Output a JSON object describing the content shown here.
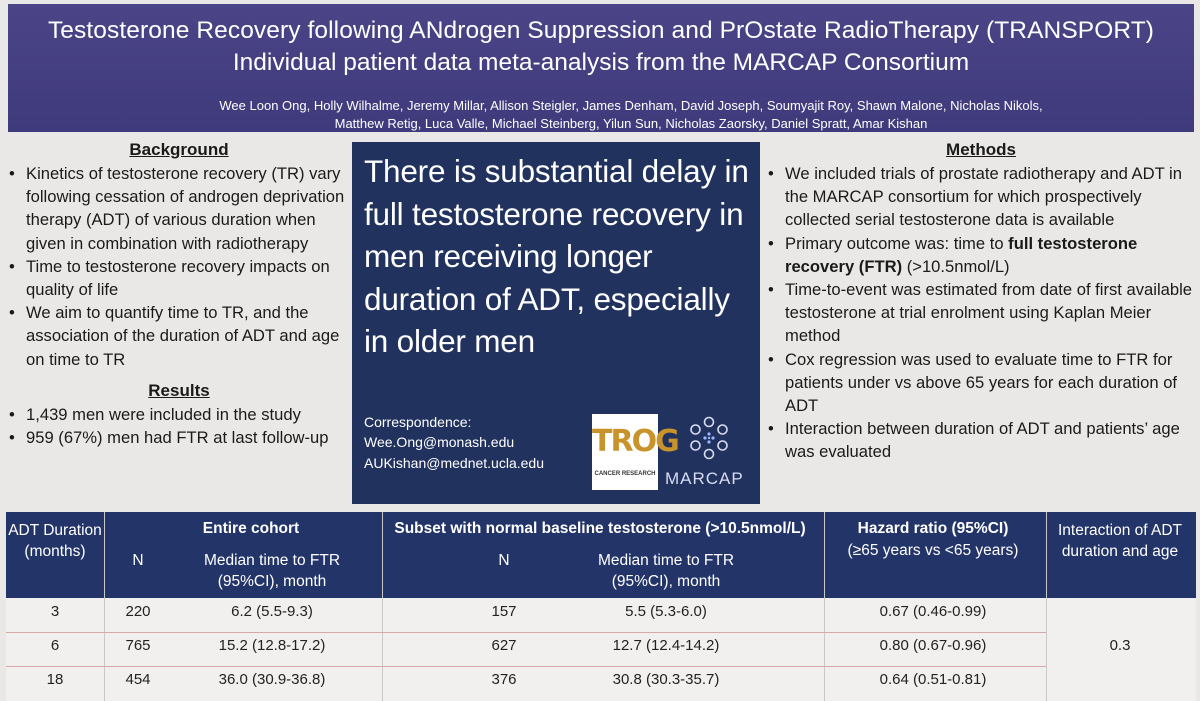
{
  "header": {
    "title_line1": "Testosterone Recovery following ANdrogen Suppression and PrOstate RadioTherapy (TRANSPORT)",
    "title_line2": "Individual patient data meta-analysis from the MARCAP Consortium",
    "authors_line1": "Wee Loon Ong, Holly Wilhalme, Jeremy Millar, Allison Steigler, James Denham, David Joseph, Soumyajit Roy, Shawn Malone, Nicholas Nikols,",
    "authors_line2": "Matthew Retig, Luca Valle, Michael Steinberg, Yilun Sun, Nicholas Zaorsky, Daniel Spratt, Amar Kishan"
  },
  "background": {
    "heading": "Background",
    "items": [
      "Kinetics of testosterone recovery (TR) vary following cessation of androgen deprivation therapy (ADT) of various duration when given in combination with radiotherapy",
      "Time to testosterone recovery impacts on quality of life",
      "We aim to quantify time to TR, and the association of the duration of ADT and age on time to TR"
    ]
  },
  "results": {
    "heading": "Results",
    "items": [
      "1,439 men were included in the study",
      "959 (67%) men had FTR at last follow-up"
    ]
  },
  "center": {
    "headline": "There is substantial delay in full testosterone recovery in men receiving longer duration of ADT, especially in older men",
    "correspondence_label": "Correspondence:",
    "email1": "Wee.Ong@monash.edu",
    "email2": "AUKishan@mednet.ucla.edu",
    "trog_logo_text": "TROG",
    "trog_logo_sub": "CANCER RESEARCH",
    "marcap_logo_text": "MARCAP"
  },
  "methods": {
    "heading": "Methods",
    "item1": "We included trials of prostate radiotherapy and ADT in the MARCAP consortium for which prospectively collected serial testosterone data is available",
    "item2_prefix": "Primary outcome was: time to ",
    "item2_bold": "full testosterone recovery (FTR)",
    "item2_suffix": " (>10.5nmol/L)",
    "item3": "Time-to-event was estimated from date of first available testosterone at trial enrolment using Kaplan Meier method",
    "item4": "Cox regression was used to evaluate time to FTR for patients under vs above 65 years for each duration of ADT",
    "item5": "Interaction between duration of ADT and patients’ age was evaluated"
  },
  "table": {
    "col_duration": "ADT Duration (months)",
    "group_entire": "Entire cohort",
    "group_subset": "Subset with normal baseline testosterone (>10.5nmol/L)",
    "col_hazard_title": "Hazard ratio (95%CI)",
    "col_hazard_sub": "(≥65 years vs <65 years)",
    "col_interaction": "Interaction of ADT duration and age",
    "col_n": "N",
    "col_median": "Median time to FTR (95%CI), month",
    "rows": [
      {
        "duration": "3",
        "n1": "220",
        "med1": "6.2 (5.5-9.3)",
        "n2": "157",
        "med2": "5.5 (5.3-6.0)",
        "hr": "0.67 (0.46-0.99)"
      },
      {
        "duration": "6",
        "n1": "765",
        "med1": "15.2 (12.8-17.2)",
        "n2": "627",
        "med2": "12.7 (12.4-14.2)",
        "hr": "0.80 (0.67-0.96)"
      },
      {
        "duration": "18",
        "n1": "454",
        "med1": "36.0 (30.9-36.8)",
        "n2": "376",
        "med2": "30.8 (30.3-35.7)",
        "hr": "0.64 (0.51-0.81)"
      }
    ],
    "interaction_value": "0.3"
  }
}
